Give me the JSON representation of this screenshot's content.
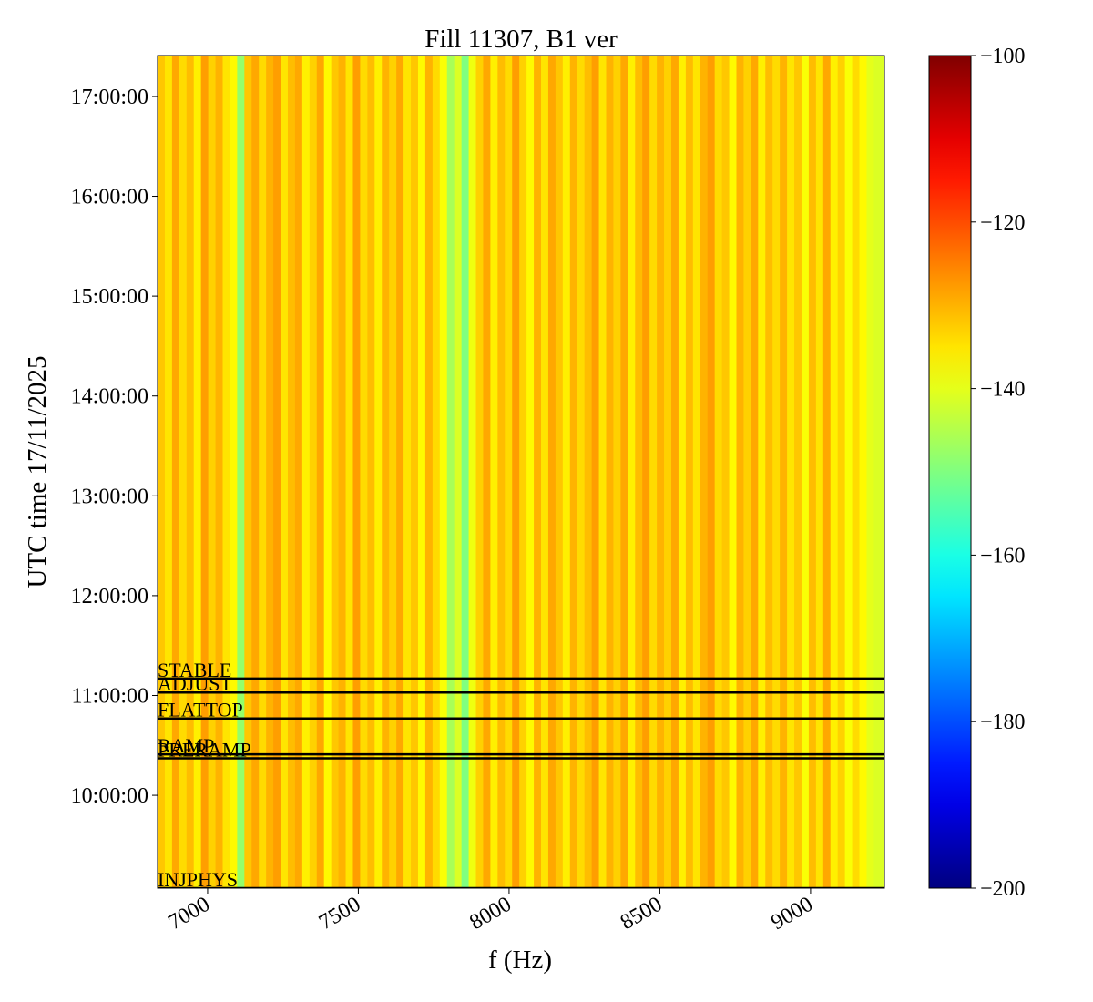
{
  "chart_data": {
    "type": "heatmap",
    "title": "Fill 11307, B1 ver",
    "xlabel": "f (Hz)",
    "ylabel": "UTC time 17/11/2025",
    "colormap": "jet",
    "xlim": [
      6834,
      9245
    ],
    "xticks": [
      7000,
      7500,
      8000,
      8500,
      9000
    ],
    "ylim": [
      9.07,
      17.41
    ],
    "yticks": [
      {
        "value": 10,
        "label": "10:00:00"
      },
      {
        "value": 11,
        "label": "11:00:00"
      },
      {
        "value": 12,
        "label": "12:00:00"
      },
      {
        "value": 13,
        "label": "13:00:00"
      },
      {
        "value": 14,
        "label": "14:00:00"
      },
      {
        "value": 15,
        "label": "15:00:00"
      },
      {
        "value": 16,
        "label": "16:00:00"
      },
      {
        "value": 17,
        "label": "17:00:00"
      }
    ],
    "clim": [
      -200,
      -100
    ],
    "cticks": [
      {
        "value": -100,
        "label": "−100"
      },
      {
        "value": -120,
        "label": "−120"
      },
      {
        "value": -140,
        "label": "−140"
      },
      {
        "value": -160,
        "label": "−160"
      },
      {
        "value": -180,
        "label": "−180"
      },
      {
        "value": -200,
        "label": "−200"
      }
    ],
    "x": [
      6846,
      6870,
      6894,
      6918,
      6942,
      6966,
      6990,
      7014,
      7038,
      7062,
      7086,
      7110,
      7134,
      7158,
      7182,
      7206,
      7230,
      7254,
      7278,
      7302,
      7326,
      7350,
      7374,
      7398,
      7422,
      7446,
      7470,
      7494,
      7518,
      7542,
      7566,
      7590,
      7614,
      7638,
      7662,
      7686,
      7710,
      7734,
      7758,
      7782,
      7806,
      7830,
      7854,
      7878,
      7902,
      7926,
      7950,
      7974,
      7998,
      8022,
      8046,
      8070,
      8094,
      8118,
      8142,
      8166,
      8190,
      8214,
      8238,
      8262,
      8286,
      8310,
      8334,
      8358,
      8382,
      8406,
      8430,
      8454,
      8478,
      8502,
      8526,
      8550,
      8574,
      8598,
      8622,
      8646,
      8670,
      8694,
      8718,
      8742,
      8766,
      8790,
      8814,
      8838,
      8862,
      8886,
      8910,
      8934,
      8958,
      8982,
      9006,
      9030,
      9054,
      9078,
      9102,
      9126,
      9150,
      9174,
      9198,
      9222
    ],
    "values": [
      -132,
      -135,
      -129,
      -134,
      -131,
      -136,
      -128,
      -133,
      -130,
      -135,
      -137,
      -148,
      -132,
      -129,
      -134,
      -130,
      -128,
      -135,
      -131,
      -129,
      -136,
      -133,
      -129,
      -137,
      -132,
      -130,
      -135,
      -128,
      -134,
      -131,
      -136,
      -130,
      -133,
      -129,
      -135,
      -132,
      -137,
      -130,
      -134,
      -138,
      -146,
      -141,
      -150,
      -139,
      -133,
      -129,
      -136,
      -131,
      -134,
      -128,
      -133,
      -137,
      -130,
      -135,
      -129,
      -132,
      -136,
      -130,
      -134,
      -131,
      -128,
      -135,
      -130,
      -133,
      -129,
      -136,
      -131,
      -128,
      -134,
      -130,
      -133,
      -129,
      -136,
      -131,
      -135,
      -130,
      -128,
      -134,
      -132,
      -137,
      -130,
      -133,
      -129,
      -136,
      -131,
      -134,
      -130,
      -135,
      -132,
      -138,
      -131,
      -135,
      -129,
      -136,
      -133,
      -138,
      -134,
      -137,
      -140,
      -141
    ],
    "events": [
      {
        "name": "STABLE",
        "time": 11.17
      },
      {
        "name": "ADJUST",
        "time": 11.03
      },
      {
        "name": "FLATTOP",
        "time": 10.77
      },
      {
        "name": "RAMP",
        "time": 10.41
      },
      {
        "name": "PRERAMP",
        "time": 10.37
      },
      {
        "name": "INJPHYS",
        "time": 9.07
      }
    ]
  }
}
